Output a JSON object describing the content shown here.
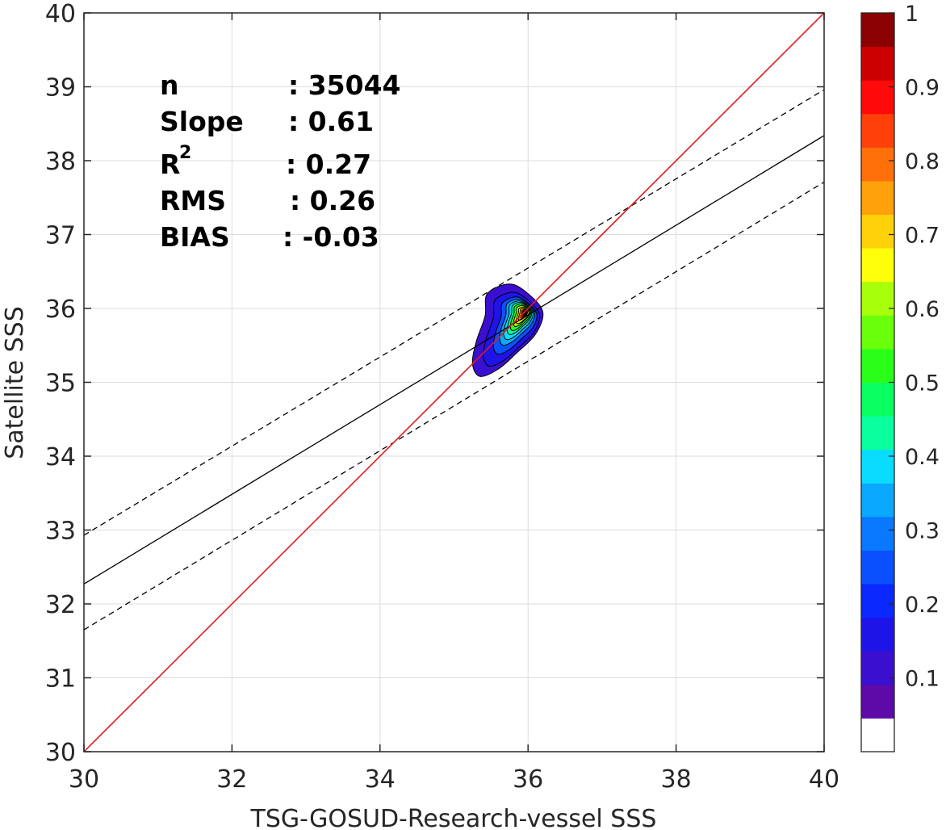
{
  "chart_data": {
    "type": "contour",
    "xlabel": "TSG-GOSUD-Research-vessel SSS",
    "ylabel": "Satellite SSS",
    "xlim": [
      30,
      40
    ],
    "ylim": [
      30,
      40
    ],
    "xticks": [
      "30",
      "32",
      "34",
      "36",
      "38",
      "40"
    ],
    "yticks": [
      "30",
      "31",
      "32",
      "33",
      "34",
      "35",
      "36",
      "37",
      "38",
      "39",
      "40"
    ],
    "grid": true,
    "stats": {
      "n_label": "n",
      "n_value": ": 35044",
      "slope_label": "Slope",
      "slope_value": ": 0.61",
      "r2_label": "R",
      "r2_sup": "2",
      "r2_value": ": 0.27",
      "rms_label": "RMS",
      "rms_value": ": 0.26",
      "bias_label": "BIAS",
      "bias_value": ": -0.03"
    },
    "lines": {
      "identity": {
        "x": [
          30,
          40
        ],
        "y": [
          30,
          40
        ],
        "color": "#e41a1c"
      },
      "fit": {
        "x": [
          30,
          40
        ],
        "y": [
          32.27,
          38.34
        ],
        "color": "#000000"
      },
      "fit_upper": {
        "x": [
          30,
          40
        ],
        "y": [
          32.93,
          38.96
        ],
        "color": "#000000",
        "style": "dashed"
      },
      "fit_lower": {
        "x": [
          30,
          40
        ],
        "y": [
          31.65,
          37.71
        ],
        "color": "#000000",
        "style": "dashed"
      }
    },
    "density_center": {
      "x": 35.85,
      "y": 35.87
    },
    "colorbar": {
      "ticks": [
        "0.1",
        "0.2",
        "0.3",
        "0.4",
        "0.5",
        "0.6",
        "0.7",
        "0.8",
        "0.9",
        "1"
      ],
      "range": [
        0,
        1
      ],
      "colors": [
        "#ffffff",
        "#5d0aa8",
        "#3a0fcf",
        "#1f14e8",
        "#0a28ff",
        "#0a50ff",
        "#0a78ff",
        "#0aa8ff",
        "#0adcff",
        "#0aff9e",
        "#0aff60",
        "#2aff1a",
        "#6aff0a",
        "#a8ff0a",
        "#ffff0a",
        "#ffd10a",
        "#ffa10a",
        "#ff700a",
        "#ff400a",
        "#ff0a0a",
        "#cc0000",
        "#8b0000"
      ]
    }
  }
}
